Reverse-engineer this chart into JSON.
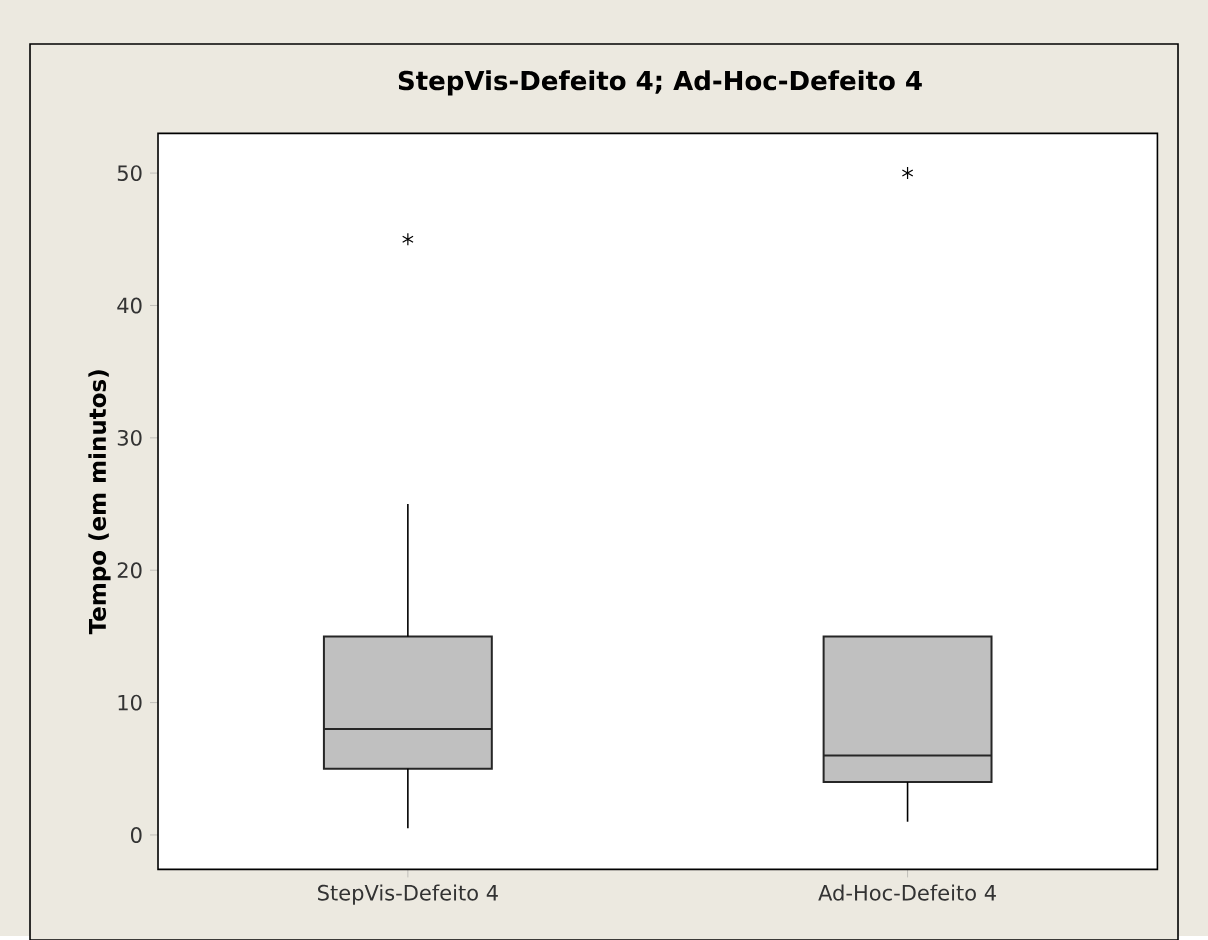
{
  "chart_data": {
    "type": "box",
    "title": "StepVis-Defeito 4; Ad-Hoc-Defeito 4",
    "ylabel": "Tempo (em minutos)",
    "categories": [
      "StepVis-Defeito 4",
      "Ad-Hoc-Defeito 4"
    ],
    "series": [
      {
        "color": "#c0c0c0",
        "boxes": [
          {
            "low": 0.5,
            "q1": 5,
            "median": 8,
            "q3": 15,
            "high": 25,
            "outliers": [
              45
            ]
          },
          {
            "low": 1,
            "q1": 4,
            "median": 6,
            "q3": 15,
            "high": 15,
            "outliers": [
              50
            ]
          }
        ]
      }
    ],
    "ylim": [
      -2.6,
      53
    ],
    "yticks": [
      0,
      10,
      20,
      30,
      40,
      50
    ],
    "grid": false
  }
}
